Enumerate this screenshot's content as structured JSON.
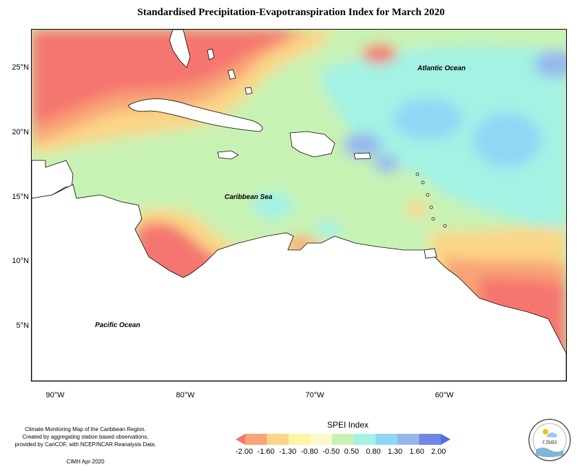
{
  "title": "Standardised Precipitation-Evapotranspiration Index for March 2020",
  "map": {
    "lat_labels": [
      "25°N",
      "20°N",
      "15°N",
      "10°N",
      "5°N"
    ],
    "lon_labels": [
      "90°W",
      "80°W",
      "70°W",
      "60°W"
    ],
    "ocean_labels": {
      "atlantic": "Atlantic Ocean",
      "caribbean": "Caribbean Sea",
      "pacific": "Pacific Ocean"
    },
    "land_color": "#ffffff",
    "coastline_color": "#000000"
  },
  "legend": {
    "title": "SPEI Index",
    "ticks": [
      "-2.00",
      "-1.60",
      "-1.30",
      "-0.80",
      "-0.50",
      "0.50",
      "0.80",
      "1.30",
      "1.60",
      "2.00"
    ],
    "colors": [
      "#f5766f",
      "#f8a476",
      "#fbd587",
      "#fdf6a3",
      "#f8fbc8",
      "#c8f2b4",
      "#a3f2e4",
      "#8fd7f5",
      "#96b7ec",
      "#6f86e6",
      "#4f6ef0"
    ]
  },
  "credit": {
    "lines": [
      "Climate Monitoring Map of the Caribbean Region.",
      "Created by aggregating station based observations,",
      "provided by CariCOF, with NCEP/NCAR Reanalysis Data."
    ],
    "date": "CIMH Apr-2020"
  },
  "logo": {
    "text": "CIMH",
    "icon": "sun-cloud-icon"
  }
}
